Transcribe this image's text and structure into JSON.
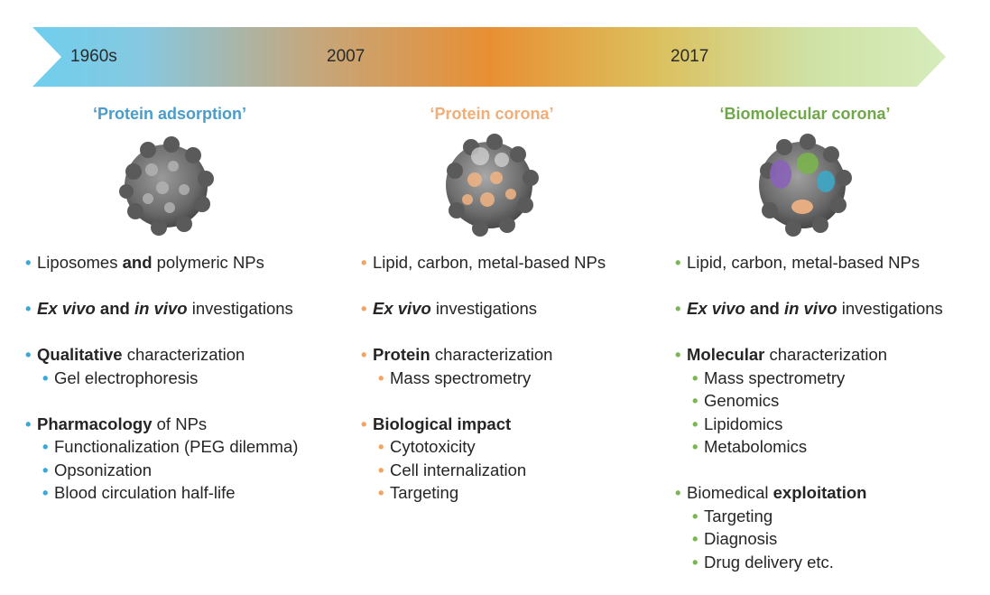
{
  "colors": {
    "blue": "#3aa8d8",
    "orange": "#f2a462",
    "green": "#7ab752",
    "title_blue": "#4a9cc9",
    "title_orange": "#f0ae78",
    "title_green": "#6fa74a"
  },
  "timeline": {
    "years": [
      "1960s",
      "2007",
      "2017"
    ]
  },
  "columns": [
    {
      "title": "‘Protein adsorption’",
      "particle_icon": "nanoparticle-gray-icon",
      "groups": [
        {
          "main": [
            {
              "t": "Liposomes ",
              "b": false,
              "i": false
            },
            {
              "t": "and",
              "b": true,
              "i": false
            },
            {
              "t": " polymeric NPs",
              "b": false,
              "i": false
            }
          ],
          "subs": []
        },
        {
          "main": [
            {
              "t": "Ex vivo",
              "b": true,
              "i": true
            },
            {
              "t": " and ",
              "b": true,
              "i": false
            },
            {
              "t": "in vivo",
              "b": true,
              "i": true
            },
            {
              "t": " investigations",
              "b": false,
              "i": false
            }
          ],
          "subs": []
        },
        {
          "main": [
            {
              "t": "Qualitative",
              "b": true,
              "i": false
            },
            {
              "t": " characterization",
              "b": false,
              "i": false
            }
          ],
          "subs": [
            "Gel electrophoresis"
          ]
        },
        {
          "main": [
            {
              "t": "Pharmacology",
              "b": true,
              "i": false
            },
            {
              "t": " of NPs",
              "b": false,
              "i": false
            }
          ],
          "subs": [
            "Functionalization (PEG dilemma)",
            "Opsonization",
            "Blood circulation half-life"
          ]
        }
      ]
    },
    {
      "title": "‘Protein corona’",
      "particle_icon": "nanoparticle-orange-corona-icon",
      "groups": [
        {
          "main": [
            {
              "t": "Lipid, carbon, metal-based NPs",
              "b": false,
              "i": false
            }
          ],
          "subs": []
        },
        {
          "main": [
            {
              "t": "Ex vivo",
              "b": true,
              "i": true
            },
            {
              "t": " investigations",
              "b": false,
              "i": false
            }
          ],
          "subs": []
        },
        {
          "main": [
            {
              "t": "Protein",
              "b": true,
              "i": false
            },
            {
              "t": " characterization",
              "b": false,
              "i": false
            }
          ],
          "subs": [
            "Mass spectrometry"
          ]
        },
        {
          "main": [
            {
              "t": "Biological impact",
              "b": true,
              "i": false
            }
          ],
          "subs": [
            "Cytotoxicity",
            "Cell internalization",
            "Targeting"
          ]
        }
      ]
    },
    {
      "title": "‘Biomolecular corona’",
      "particle_icon": "nanoparticle-multicolor-corona-icon",
      "groups": [
        {
          "main": [
            {
              "t": "Lipid, carbon, metal-based NPs",
              "b": false,
              "i": false
            }
          ],
          "subs": []
        },
        {
          "main": [
            {
              "t": "Ex vivo",
              "b": true,
              "i": true
            },
            {
              "t": " and ",
              "b": true,
              "i": false
            },
            {
              "t": "in vivo",
              "b": true,
              "i": true
            },
            {
              "t": " investigations",
              "b": false,
              "i": false
            }
          ],
          "subs": []
        },
        {
          "main": [
            {
              "t": "Molecular",
              "b": true,
              "i": false
            },
            {
              "t": " characterization",
              "b": false,
              "i": false
            }
          ],
          "subs": [
            "Mass spectrometry",
            "Genomics",
            "Lipidomics",
            "Metabolomics"
          ]
        },
        {
          "main": [
            {
              "t": "Biomedical ",
              "b": false,
              "i": false
            },
            {
              "t": "exploitation",
              "b": true,
              "i": false
            }
          ],
          "subs": [
            "Targeting",
            "Diagnosis",
            "Drug delivery etc."
          ]
        }
      ]
    }
  ]
}
